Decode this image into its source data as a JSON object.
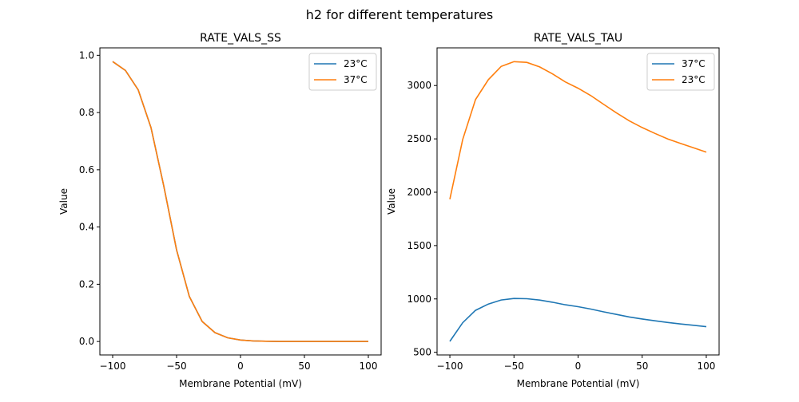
{
  "suptitle": "h2 for different temperatures",
  "chart_data": [
    {
      "type": "line",
      "title": "RATE_VALS_SS",
      "xlabel": "Membrane Potential (mV)",
      "ylabel": "Value",
      "xlim": [
        -110,
        110
      ],
      "ylim": [
        -0.047,
        1.026
      ],
      "xticks": [
        -100,
        -50,
        0,
        50,
        100
      ],
      "yticks": [
        0.0,
        0.2,
        0.4,
        0.6,
        0.8,
        1.0
      ],
      "ytick_labels": [
        "0.0",
        "0.2",
        "0.4",
        "0.6",
        "0.8",
        "1.0"
      ],
      "grid": false,
      "legend_placement": "top-right",
      "x": [
        -100,
        -90,
        -80,
        -70,
        -60,
        -50,
        -40,
        -30,
        -20,
        -10,
        0,
        10,
        20,
        30,
        40,
        50,
        60,
        70,
        80,
        90,
        100
      ],
      "series": [
        {
          "name": "23°C",
          "color": "#1f77b4",
          "values": [
            0.978,
            0.947,
            0.879,
            0.747,
            0.543,
            0.32,
            0.157,
            0.07,
            0.031,
            0.013,
            0.005,
            0.002,
            0.001,
            0,
            0,
            0,
            0,
            0,
            0,
            0,
            0
          ]
        },
        {
          "name": "37°C",
          "color": "#ff7f0e",
          "values": [
            0.978,
            0.947,
            0.879,
            0.747,
            0.543,
            0.32,
            0.157,
            0.07,
            0.031,
            0.013,
            0.005,
            0.002,
            0.001,
            0,
            0,
            0,
            0,
            0,
            0,
            0,
            0
          ]
        }
      ]
    },
    {
      "type": "line",
      "title": "RATE_VALS_TAU",
      "xlabel": "Membrane Potential (mV)",
      "ylabel": "Value",
      "xlim": [
        -110,
        110
      ],
      "ylim": [
        475,
        3353
      ],
      "xticks": [
        -100,
        -50,
        0,
        50,
        100
      ],
      "yticks": [
        500,
        1000,
        1500,
        2000,
        2500,
        3000
      ],
      "ytick_labels": [
        "500",
        "1000",
        "1500",
        "2000",
        "2500",
        "3000"
      ],
      "grid": false,
      "legend_placement": "top-right",
      "x": [
        -100,
        -90,
        -80,
        -70,
        -60,
        -50,
        -40,
        -30,
        -20,
        -10,
        0,
        10,
        20,
        30,
        40,
        50,
        60,
        70,
        80,
        90,
        100
      ],
      "series": [
        {
          "name": "37°C",
          "color": "#1f77b4",
          "values": [
            602,
            777,
            893,
            952,
            990,
            1004,
            1002,
            989,
            969,
            945,
            927,
            905,
            879,
            855,
            831,
            812,
            795,
            779,
            765,
            753,
            740
          ]
        },
        {
          "name": "23°C",
          "color": "#ff7f0e",
          "values": [
            1934,
            2494,
            2868,
            3055,
            3179,
            3224,
            3217,
            3174,
            3109,
            3034,
            2975,
            2905,
            2823,
            2743,
            2668,
            2606,
            2551,
            2499,
            2457,
            2417,
            2375
          ]
        }
      ]
    }
  ]
}
